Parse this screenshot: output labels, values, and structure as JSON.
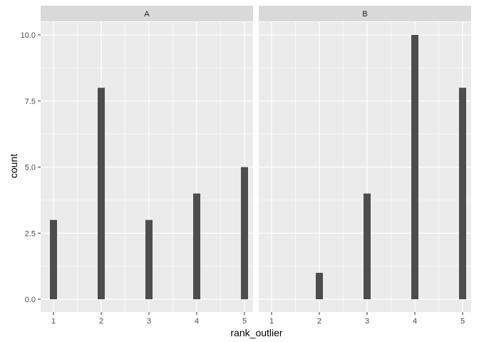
{
  "chart_data": {
    "type": "bar",
    "facet": "panel",
    "xlabel": "rank_outlier",
    "ylabel": "count",
    "x_ticks": [
      "1",
      "2",
      "3",
      "4",
      "5"
    ],
    "y_ticks": [
      "0.0",
      "2.5",
      "5.0",
      "7.5",
      "10.0"
    ],
    "ylim": [
      0,
      10
    ],
    "grid": true,
    "panels": [
      {
        "name": "A",
        "categories": [
          "1",
          "2",
          "3",
          "4",
          "5"
        ],
        "values": [
          3,
          8,
          3,
          4,
          5
        ]
      },
      {
        "name": "B",
        "categories": [
          "1",
          "2",
          "3",
          "4",
          "5"
        ],
        "values": [
          0,
          1,
          4,
          10,
          8
        ]
      }
    ],
    "colors": {
      "bar": "#4d4d4d",
      "panel_background": "#ebebeb",
      "strip_background": "#d9d9d9",
      "grid": "#ffffff"
    }
  }
}
